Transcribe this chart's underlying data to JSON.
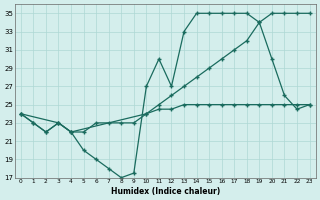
{
  "xlabel": "Humidex (Indice chaleur)",
  "bg_color": "#d4eeec",
  "grid_color": "#aed8d4",
  "line_color": "#1a6b5e",
  "xlim": [
    -0.5,
    23.5
  ],
  "ylim": [
    17,
    36
  ],
  "xticks": [
    0,
    1,
    2,
    3,
    4,
    5,
    6,
    7,
    8,
    9,
    10,
    11,
    12,
    13,
    14,
    15,
    16,
    17,
    18,
    19,
    20,
    21,
    22,
    23
  ],
  "yticks": [
    17,
    19,
    21,
    23,
    25,
    27,
    29,
    31,
    33,
    35
  ],
  "line1_x": [
    0,
    1,
    2,
    3,
    4,
    5,
    6,
    7,
    8,
    9,
    10,
    11,
    12,
    13,
    14,
    15,
    16,
    17,
    18,
    19,
    20,
    21,
    22,
    23
  ],
  "line1_y": [
    24,
    23,
    22,
    23,
    22,
    20,
    19,
    18,
    17,
    17.5,
    27,
    30,
    27,
    33,
    35,
    35,
    35,
    35,
    35,
    34,
    30,
    26,
    24.5,
    25
  ],
  "line2_x": [
    0,
    3,
    4,
    10,
    11,
    12,
    13,
    14,
    15,
    16,
    17,
    18,
    19,
    20,
    21,
    22,
    23
  ],
  "line2_y": [
    24,
    23,
    22,
    24,
    24.5,
    24.5,
    25,
    25,
    25,
    25,
    25,
    25,
    25,
    25,
    25,
    25,
    25
  ],
  "line3_x": [
    0,
    1,
    2,
    3,
    4,
    5,
    6,
    7,
    8,
    9,
    10,
    11,
    12,
    13,
    14,
    15,
    16,
    17,
    18,
    19,
    20,
    21,
    22,
    23
  ],
  "line3_y": [
    24,
    23,
    22,
    23,
    22,
    22,
    23,
    23,
    23,
    23,
    24,
    25,
    26,
    27,
    28,
    29,
    30,
    31,
    32,
    34,
    35,
    35,
    35,
    35
  ]
}
